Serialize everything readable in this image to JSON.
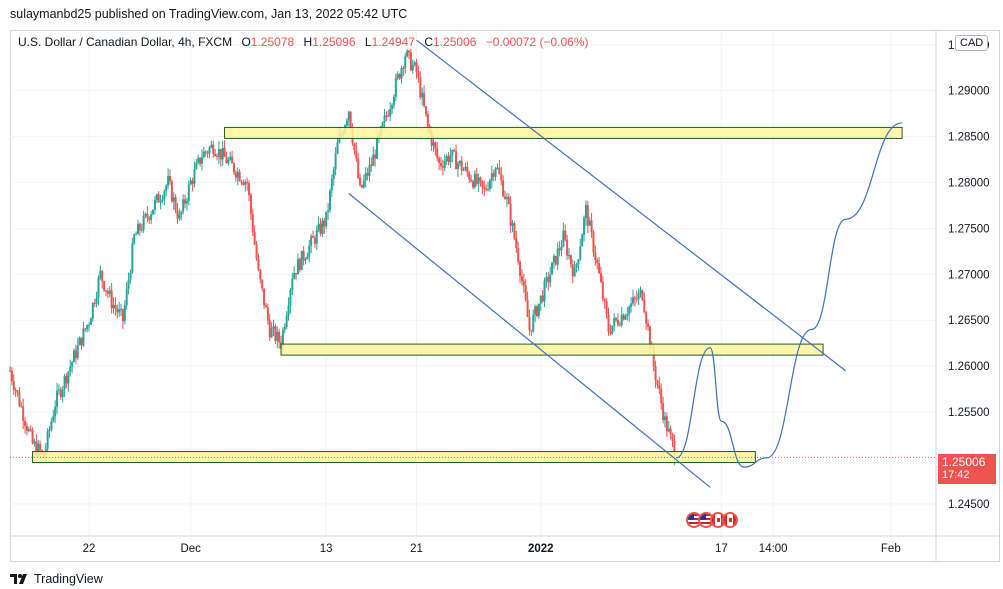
{
  "header": {
    "publisher_text": "sulaymanbd25 published on TradingView.com, Jan 13, 2022 05:42 UTC"
  },
  "legend": {
    "symbol": "U.S. Dollar / Canadian Dollar, 4h, FXCM",
    "o_label": "O",
    "o_value": "1.25078",
    "h_label": "H",
    "h_value": "1.25096",
    "l_label": "L",
    "l_value": "1.24947",
    "c_label": "C",
    "c_value": "1.25006",
    "change": "−0.00072 (−0.06%)"
  },
  "currency_badge": "CAD",
  "last_price": {
    "value": "1.25006",
    "countdown": "17:42"
  },
  "brand": {
    "name": "TradingView"
  },
  "colors": {
    "up": "#26a69a",
    "down": "#ef5350",
    "zone_fill": "#fff59d",
    "zone_stroke": "#1b5e20",
    "trendline": "#3f6fc1",
    "grid": "#f0f3fa",
    "axis_text": "#131722"
  },
  "icons": [
    "us-flag-icon",
    "us-flag-icon",
    "canada-flag-icon",
    "canada-flag-icon"
  ],
  "chart_data": {
    "type": "candlestick",
    "ylim": [
      1.2415,
      1.2965
    ],
    "y_ticks": [
      "1.29500",
      "1.29000",
      "1.28500",
      "1.28000",
      "1.27500",
      "1.27000",
      "1.26500",
      "1.26000",
      "1.25500",
      "1.24500"
    ],
    "y_tick_values": [
      1.295,
      1.29,
      1.285,
      1.28,
      1.275,
      1.27,
      1.265,
      1.26,
      1.255,
      1.245
    ],
    "x_ticks": [
      {
        "label": "22",
        "bold": false,
        "date": "2021-11-22"
      },
      {
        "label": "Dec",
        "bold": false,
        "date": "2021-12-01"
      },
      {
        "label": "13",
        "bold": false,
        "date": "2021-12-13"
      },
      {
        "label": "21",
        "bold": false,
        "date": "2021-12-21"
      },
      {
        "label": "2022",
        "bold": true,
        "date": "2022-01-01"
      },
      {
        "label": "17",
        "bold": false,
        "date": "2022-01-17"
      },
      {
        "label": "14:00",
        "bold": false,
        "date": "2022-01-21T14:00"
      },
      {
        "label": "Feb",
        "bold": false,
        "date": "2022-02-01"
      }
    ],
    "price_path": [
      [
        "2021-11-15",
        1.2595
      ],
      [
        "2021-11-16",
        1.2555
      ],
      [
        "2021-11-17",
        1.2515
      ],
      [
        "2021-11-18",
        1.2502
      ],
      [
        "2021-11-19",
        1.256
      ],
      [
        "2021-11-22",
        1.265
      ],
      [
        "2021-11-23",
        1.27
      ],
      [
        "2021-11-24",
        1.267
      ],
      [
        "2021-11-25",
        1.265
      ],
      [
        "2021-11-26",
        1.274
      ],
      [
        "2021-11-29",
        1.28
      ],
      [
        "2021-11-30",
        1.276
      ],
      [
        "2021-12-01",
        1.28
      ],
      [
        "2021-12-02",
        1.283
      ],
      [
        "2021-12-03",
        1.284
      ],
      [
        "2021-12-06",
        1.28
      ],
      [
        "2021-12-07",
        1.27
      ],
      [
        "2021-12-08",
        1.264
      ],
      [
        "2021-12-09",
        1.2625
      ],
      [
        "2021-12-10",
        1.27
      ],
      [
        "2021-12-13",
        1.276
      ],
      [
        "2021-12-14",
        1.284
      ],
      [
        "2021-12-15",
        1.288
      ],
      [
        "2021-12-16",
        1.279
      ],
      [
        "2021-12-17",
        1.282
      ],
      [
        "2021-12-20",
        1.294
      ],
      [
        "2021-12-21",
        1.292
      ],
      [
        "2021-12-22",
        1.286
      ],
      [
        "2021-12-23",
        1.282
      ],
      [
        "2021-12-24",
        1.283
      ],
      [
        "2021-12-27",
        1.279
      ],
      [
        "2021-12-28",
        1.282
      ],
      [
        "2021-12-29",
        1.278
      ],
      [
        "2021-12-30",
        1.272
      ],
      [
        "2021-12-31",
        1.264
      ],
      [
        "2022-01-03",
        1.274
      ],
      [
        "2022-01-04",
        1.27
      ],
      [
        "2022-01-05",
        1.277
      ],
      [
        "2022-01-06",
        1.271
      ],
      [
        "2022-01-07",
        1.264
      ],
      [
        "2022-01-10",
        1.268
      ],
      [
        "2022-01-11",
        1.26
      ],
      [
        "2022-01-12",
        1.254
      ],
      [
        "2022-01-13",
        1.2501
      ]
    ],
    "horizontal_zones": [
      {
        "date_range": [
          "2021-12-04",
          "2022-02-02"
        ],
        "price_range": [
          1.2848,
          1.286
        ]
      },
      {
        "date_range": [
          "2021-12-09",
          "2022-01-26"
        ],
        "price_range": [
          1.2612,
          1.2624
        ]
      },
      {
        "date_range": [
          "2021-11-17",
          "2022-01-20"
        ],
        "price_range": [
          1.2495,
          1.2507
        ]
      }
    ],
    "trendlines": [
      {
        "from": [
          "2021-12-21",
          1.2955
        ],
        "to": [
          "2022-01-28",
          1.2595
        ]
      },
      {
        "from": [
          "2021-12-15",
          1.2788
        ],
        "to": [
          "2022-01-16",
          1.2468
        ]
      }
    ],
    "projection": [
      [
        "2022-01-13",
        1.25
      ],
      [
        "2022-01-16",
        1.262
      ],
      [
        "2022-01-17",
        1.254
      ],
      [
        "2022-01-19",
        1.249
      ],
      [
        "2022-01-21",
        1.25
      ],
      [
        "2022-01-25",
        1.264
      ],
      [
        "2022-01-28",
        1.276
      ],
      [
        "2022-02-02",
        1.2865
      ]
    ],
    "last_price_line": 1.25006
  }
}
